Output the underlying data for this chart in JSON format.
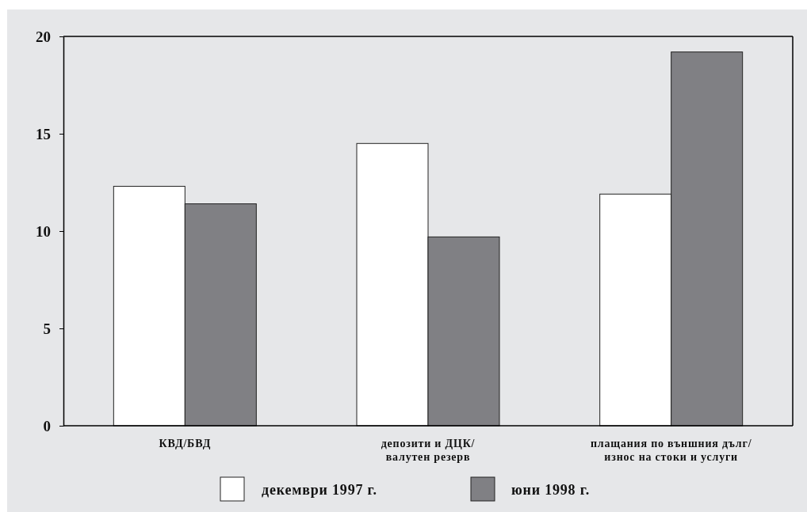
{
  "chart_data": {
    "type": "bar",
    "categories": [
      "КВД/БВД",
      "депозити и ДЦК/\nвалутен резерв",
      "плащания по външния дълг/\nизнос на стоки и услуги"
    ],
    "series": [
      {
        "name": "декември 1997 г.",
        "color": "#ffffff",
        "values": [
          12.3,
          14.5,
          11.9
        ]
      },
      {
        "name": "юни 1998 г.",
        "color": "#808084",
        "values": [
          11.4,
          9.7,
          19.2
        ]
      }
    ],
    "ylim": [
      0,
      20
    ],
    "yticks": [
      0,
      5,
      10,
      15,
      20
    ],
    "grid": false,
    "legend": "bottom"
  }
}
